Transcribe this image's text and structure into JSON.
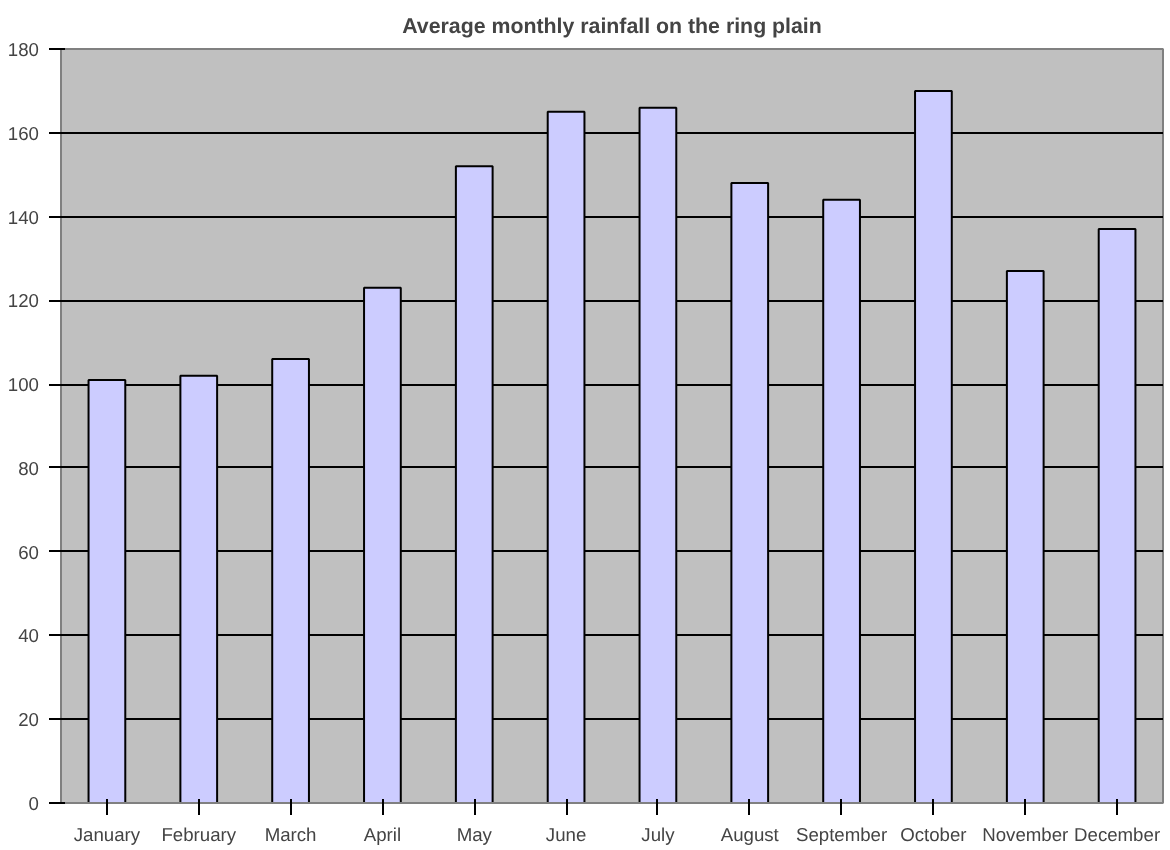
{
  "chart_data": {
    "type": "bar",
    "title": "Average monthly rainfall on the ring plain",
    "categories": [
      "January",
      "February",
      "March",
      "April",
      "May",
      "June",
      "July",
      "August",
      "September",
      "October",
      "November",
      "December"
    ],
    "values": [
      101,
      102,
      106,
      123,
      152,
      165,
      166,
      148,
      144,
      170,
      127,
      137
    ],
    "color": "#ccccff",
    "ylim": [
      0,
      180
    ],
    "yticks": [
      0,
      20,
      40,
      60,
      80,
      100,
      120,
      140,
      160,
      180
    ],
    "grid": "y"
  }
}
